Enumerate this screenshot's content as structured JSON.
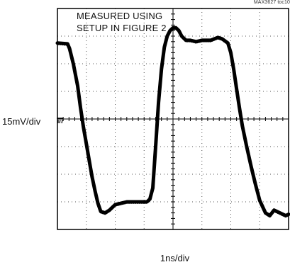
{
  "chart_data": {
    "type": "line",
    "title": "",
    "annotation": [
      "MEASURED USING",
      "SETUP IN FIGURE 2"
    ],
    "figure_id": "MAX3627 toc10",
    "xlabel": "1ns/div",
    "ylabel": "15mV/div",
    "x_units": "div",
    "y_units": "div",
    "xlim": [
      0,
      8
    ],
    "ylim": [
      -4,
      4
    ],
    "grid": true,
    "ground_marker": "left edge at 0 div",
    "series": [
      {
        "color": "#000000",
        "x": [
          0.0,
          0.35,
          0.42,
          0.55,
          0.7,
          0.8,
          0.9,
          1.0,
          1.1,
          1.2,
          1.3,
          1.4,
          1.5,
          1.65,
          1.8,
          2.0,
          2.4,
          2.8,
          3.1,
          3.2,
          3.3,
          3.4,
          3.5,
          3.6,
          3.7,
          3.8,
          3.9,
          4.0,
          4.1,
          4.2,
          4.3,
          4.45,
          4.6,
          4.8,
          5.0,
          5.3,
          5.55,
          5.7,
          5.9,
          6.0,
          6.1,
          6.2,
          6.3,
          6.4,
          6.55,
          6.7,
          6.85,
          7.0,
          7.2,
          7.35,
          7.5,
          7.7,
          7.9,
          8.0
        ],
        "y": [
          2.75,
          2.72,
          2.55,
          2.0,
          1.2,
          0.4,
          -0.3,
          -0.9,
          -1.5,
          -2.1,
          -2.6,
          -3.05,
          -3.35,
          -3.4,
          -3.3,
          -3.1,
          -3.0,
          -3.0,
          -3.0,
          -2.9,
          -2.5,
          -1.0,
          0.6,
          1.8,
          2.6,
          3.0,
          3.2,
          3.3,
          3.3,
          3.2,
          3.0,
          2.85,
          2.85,
          2.8,
          2.85,
          2.85,
          2.95,
          2.9,
          2.75,
          2.4,
          1.8,
          1.1,
          0.4,
          -0.25,
          -1.0,
          -1.7,
          -2.35,
          -2.95,
          -3.4,
          -3.5,
          -3.3,
          -3.4,
          -3.5,
          -3.45
        ]
      }
    ]
  }
}
